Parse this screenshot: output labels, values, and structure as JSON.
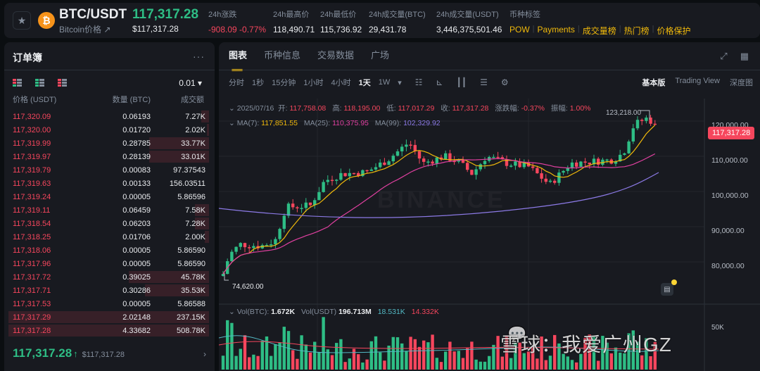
{
  "header": {
    "pair": "BTC/USDT",
    "pair_sub": "Bitcoin价格 ↗",
    "last_price": "117,317.28",
    "last_price_usd": "$117,317.28",
    "stats": [
      {
        "label": "24h涨跌",
        "value": "-908.09 -0.77%",
        "color": "red"
      },
      {
        "label": "24h最高价",
        "value": "118,490.71"
      },
      {
        "label": "24h最低价",
        "value": "115,736.92"
      },
      {
        "label": "24h成交量(BTC)",
        "value": "29,431.78"
      },
      {
        "label": "24h成交量(USDT)",
        "value": "3,446,375,501.46"
      }
    ],
    "tags_label": "币种标签",
    "tags": [
      "POW",
      "Payments",
      "成交量榜",
      "热门榜",
      "价格保护"
    ]
  },
  "orderbook": {
    "title": "订单簿",
    "more": "···",
    "precision": "0.01 ▾",
    "columns": [
      "价格 (USDT)",
      "数量 (BTC)",
      "成交额"
    ],
    "rows": [
      {
        "price": "117,320.09",
        "qty": "0.06193",
        "total": "7.27K",
        "depth": 4
      },
      {
        "price": "117,320.00",
        "qty": "0.01720",
        "total": "2.02K",
        "depth": 1
      },
      {
        "price": "117,319.99",
        "qty": "0.28785",
        "total": "33.77K",
        "depth": 30
      },
      {
        "price": "117,319.97",
        "qty": "0.28139",
        "total": "33.01K",
        "depth": 30
      },
      {
        "price": "117,319.79",
        "qty": "0.00083",
        "total": "97.37543",
        "depth": 0
      },
      {
        "price": "117,319.63",
        "qty": "0.00133",
        "total": "156.03511",
        "depth": 0
      },
      {
        "price": "117,319.24",
        "qty": "0.00005",
        "total": "5.86596",
        "depth": 0
      },
      {
        "price": "117,319.11",
        "qty": "0.06459",
        "total": "7.58K",
        "depth": 7
      },
      {
        "price": "117,318.54",
        "qty": "0.06203",
        "total": "7.28K",
        "depth": 7
      },
      {
        "price": "117,318.25",
        "qty": "0.01706",
        "total": "2.00K",
        "depth": 2
      },
      {
        "price": "117,318.06",
        "qty": "0.00005",
        "total": "5.86590",
        "depth": 0
      },
      {
        "price": "117,317.96",
        "qty": "0.00005",
        "total": "5.86590",
        "depth": 0
      },
      {
        "price": "117,317.72",
        "qty": "0.39025",
        "total": "45.78K",
        "depth": 40
      },
      {
        "price": "117,317.71",
        "qty": "0.30286",
        "total": "35.53K",
        "depth": 32
      },
      {
        "price": "117,317.53",
        "qty": "0.00005",
        "total": "5.86588",
        "depth": 0
      },
      {
        "price": "117,317.29",
        "qty": "2.02148",
        "total": "237.15K",
        "depth": 100
      },
      {
        "price": "117,317.28",
        "qty": "4.33682",
        "total": "508.78K",
        "depth": 100
      }
    ],
    "footer_price": "117,317.28",
    "footer_arrow": "↑",
    "footer_usd": "$117,317.28",
    "footer_chevron": "›"
  },
  "main": {
    "tabs": [
      "图表",
      "币种信息",
      "交易数据",
      "广场"
    ],
    "active_tab": 0,
    "intervals": [
      "分时",
      "1秒",
      "15分钟",
      "1小时",
      "4小时",
      "1天",
      "1W",
      "▾"
    ],
    "active_interval": 5,
    "tool_icons": [
      "indicator-icon",
      "drawing-icon",
      "candle-type-icon",
      "template-icon",
      "settings-icon"
    ],
    "views": [
      "基本版",
      "Trading View",
      "深度图"
    ],
    "active_view": 0
  },
  "chart_data": {
    "type": "candlestick",
    "title": "BTC/USDT 1天",
    "ohlc": {
      "date": "2025/07/16",
      "open_label": "开:",
      "open": "117,758.08",
      "high_label": "高:",
      "high": "118,195.00",
      "low_label": "低:",
      "low": "117,017.29",
      "close_label": "收:",
      "close": "117,317.28",
      "change_label": "涨跌幅:",
      "change": "-0.37%",
      "amplitude_label": "振幅:",
      "amplitude": "1.00%"
    },
    "ma": {
      "ma7_label": "MA(7):",
      "ma7": "117,851.55",
      "ma25_label": "MA(25):",
      "ma25": "110,375.95",
      "ma99_label": "MA(99):",
      "ma99": "102,329.92"
    },
    "y_ticks": [
      "120,000.00",
      "110,000.00",
      "100,000.00",
      "90,000.00",
      "80,000.00"
    ],
    "ylim": [
      72000,
      124000
    ],
    "current_price_tag": "117,317.28",
    "high_marker": "123,218.00",
    "low_marker": "74,620.00",
    "volume": {
      "label": "Vol(BTC):",
      "btc": "1.672K",
      "usdt_label": "Vol(USDT)",
      "usdt": "196.713M",
      "ma5": "18.531K",
      "ma10": "14.332K",
      "axis_tick": "50K"
    },
    "colors": {
      "up": "#2ebd85",
      "down": "#f6465d",
      "ma7": "#f0b90b",
      "ma25": "#e040a0",
      "ma99": "#8c7ae6"
    }
  },
  "watermark": "雪球：我爱广州GZ",
  "binance_watermark": "BINANCE"
}
